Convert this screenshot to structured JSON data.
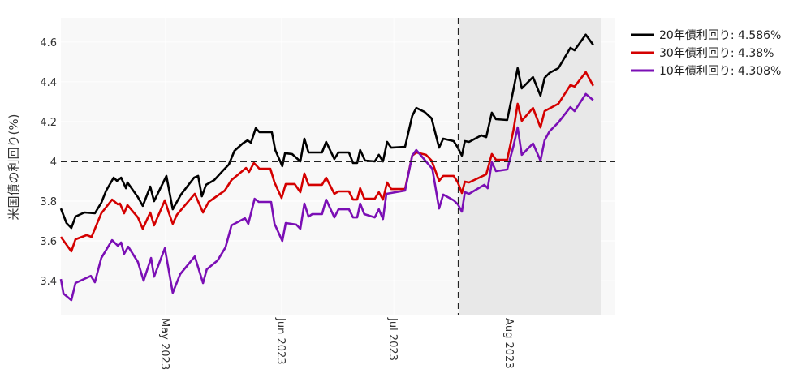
{
  "chart_data": {
    "type": "line",
    "title": "",
    "xlabel": "",
    "ylabel": "米国債の利回り(%)",
    "x_units": "days since 2023-04-01",
    "xlim": [
      2,
      150.2
    ],
    "ylim": [
      3.229,
      4.722
    ],
    "yticks": [
      3.4,
      3.6,
      3.8,
      4.0,
      4.2,
      4.4,
      4.6
    ],
    "ytick_labels": [
      "3.4",
      "3.6",
      "3.8",
      "4",
      "4.2",
      "4.4",
      "4.6"
    ],
    "xticks": [
      30,
      61,
      91,
      122
    ],
    "xtick_labels": [
      "May 2023",
      "Jun 2023",
      "Jul 2023",
      "Aug 2023"
    ],
    "reference_hline": 4.0,
    "reference_vline": 108.3,
    "shaded_region": [
      108.3,
      146.3
    ],
    "legend_position": "top-right-outside",
    "colors": {
      "plot_bg": "#f8f8f8",
      "shade": "#e8e8e8"
    },
    "series": [
      {
        "name": "20年債利回り: 4.586%",
        "color": "#000000",
        "x": [
          2.0,
          3.5,
          4.8,
          5.9,
          8.3,
          11.1,
          12.8,
          14.1,
          16.1,
          17.0,
          18.1,
          19.4,
          19.8,
          22.6,
          23.9,
          25.9,
          26.9,
          30.2,
          31.9,
          34.1,
          37.6,
          38.7,
          39.7,
          40.8,
          43.0,
          45.4,
          46.9,
          48.4,
          50.6,
          51.9,
          52.8,
          54.1,
          55.1,
          58.4,
          59.3,
          61.2,
          61.9,
          63.8,
          66.0,
          67.1,
          68.2,
          71.8,
          72.9,
          75.1,
          76.2,
          79.0,
          80.1,
          81.2,
          82.0,
          83.3,
          85.9,
          87.0,
          88.1,
          89.2,
          90.3,
          94.0,
          95.9,
          97.0,
          99.2,
          101.1,
          103.1,
          104.2,
          107.0,
          108.1,
          109.2,
          110.0,
          111.1,
          114.4,
          115.7,
          117.2,
          118.3,
          121.3,
          123.0,
          124.1,
          125.2,
          128.2,
          130.2,
          131.3,
          132.6,
          135.0,
          138.2,
          139.3,
          142.3,
          144.3
        ],
        "y": [
          3.763,
          3.69,
          3.665,
          3.722,
          3.743,
          3.739,
          3.792,
          3.853,
          3.918,
          3.902,
          3.918,
          3.865,
          3.894,
          3.82,
          3.776,
          3.873,
          3.8,
          3.927,
          3.759,
          3.833,
          3.918,
          3.927,
          3.824,
          3.882,
          3.906,
          3.955,
          3.984,
          4.053,
          4.09,
          4.106,
          4.094,
          4.167,
          4.147,
          4.147,
          4.057,
          3.976,
          4.041,
          4.037,
          4.0,
          4.114,
          4.045,
          4.045,
          4.098,
          4.012,
          4.045,
          4.045,
          3.992,
          3.992,
          4.057,
          4.004,
          4.0,
          4.033,
          4.0,
          4.098,
          4.069,
          4.073,
          4.229,
          4.269,
          4.249,
          4.216,
          4.069,
          4.114,
          4.102,
          4.069,
          4.029,
          4.102,
          4.098,
          4.131,
          4.122,
          4.245,
          4.212,
          4.208,
          4.363,
          4.469,
          4.367,
          4.424,
          4.331,
          4.42,
          4.445,
          4.469,
          4.571,
          4.559,
          4.637,
          4.586
        ]
      },
      {
        "name": "30年債利回り: 4.38%",
        "color": "#d40000",
        "x": [
          2.0,
          4.8,
          5.9,
          8.9,
          10.2,
          12.8,
          15.7,
          17.2,
          17.8,
          18.9,
          19.8,
          22.6,
          23.9,
          25.9,
          26.9,
          29.8,
          30.9,
          31.9,
          33.0,
          37.8,
          40.0,
          41.5,
          45.8,
          47.6,
          51.5,
          52.3,
          53.6,
          55.1,
          58.0,
          59.1,
          61.0,
          62.1,
          64.5,
          66.0,
          67.1,
          68.2,
          71.8,
          72.9,
          75.1,
          76.2,
          79.0,
          80.1,
          81.2,
          82.0,
          83.1,
          85.9,
          87.0,
          88.1,
          89.2,
          90.3,
          94.0,
          95.9,
          97.0,
          99.6,
          101.1,
          103.1,
          104.2,
          107.0,
          108.1,
          109.2,
          110.0,
          111.1,
          115.7,
          117.2,
          118.3,
          121.3,
          123.0,
          124.1,
          125.2,
          128.2,
          130.2,
          131.3,
          135.0,
          138.2,
          139.3,
          142.3,
          144.3
        ],
        "y": [
          3.62,
          3.547,
          3.608,
          3.629,
          3.62,
          3.739,
          3.808,
          3.784,
          3.788,
          3.739,
          3.78,
          3.718,
          3.661,
          3.743,
          3.678,
          3.804,
          3.739,
          3.686,
          3.731,
          3.837,
          3.743,
          3.796,
          3.853,
          3.906,
          3.967,
          3.947,
          3.992,
          3.963,
          3.963,
          3.894,
          3.816,
          3.886,
          3.886,
          3.845,
          3.939,
          3.882,
          3.882,
          3.918,
          3.837,
          3.849,
          3.849,
          3.808,
          3.808,
          3.865,
          3.812,
          3.812,
          3.845,
          3.808,
          3.894,
          3.861,
          3.861,
          4.029,
          4.045,
          4.033,
          4.004,
          3.902,
          3.927,
          3.927,
          3.894,
          3.841,
          3.898,
          3.894,
          3.935,
          4.037,
          4.008,
          4.008,
          4.159,
          4.29,
          4.204,
          4.269,
          4.171,
          4.253,
          4.29,
          4.384,
          4.376,
          4.449,
          4.38
        ]
      },
      {
        "name": "10年債利回り: 4.308%",
        "color": "#7b0fb5",
        "x": [
          2.0,
          2.7,
          4.8,
          5.9,
          10.0,
          11.1,
          12.8,
          15.7,
          17.2,
          18.1,
          18.9,
          20.0,
          22.6,
          24.1,
          26.1,
          26.9,
          29.8,
          31.9,
          33.9,
          37.8,
          40.0,
          41.0,
          43.9,
          46.0,
          47.6,
          51.2,
          52.1,
          53.8,
          54.9,
          58.2,
          59.1,
          61.2,
          62.1,
          64.9,
          66.0,
          67.1,
          68.2,
          69.2,
          71.8,
          72.9,
          75.1,
          76.2,
          79.0,
          80.1,
          81.2,
          82.0,
          83.1,
          85.9,
          87.0,
          88.1,
          89.0,
          94.0,
          95.9,
          97.0,
          101.3,
          103.1,
          104.2,
          107.0,
          108.1,
          109.2,
          110.0,
          111.1,
          115.2,
          116.1,
          117.2,
          118.3,
          121.3,
          123.0,
          124.1,
          125.2,
          128.2,
          130.2,
          131.3,
          132.6,
          135.0,
          138.2,
          139.3,
          142.3,
          144.3
        ],
        "y": [
          3.408,
          3.335,
          3.302,
          3.388,
          3.424,
          3.392,
          3.514,
          3.604,
          3.576,
          3.592,
          3.535,
          3.571,
          3.494,
          3.4,
          3.514,
          3.42,
          3.563,
          3.339,
          3.433,
          3.522,
          3.388,
          3.457,
          3.502,
          3.567,
          3.678,
          3.714,
          3.686,
          3.812,
          3.796,
          3.796,
          3.686,
          3.6,
          3.69,
          3.682,
          3.661,
          3.788,
          3.722,
          3.735,
          3.735,
          3.808,
          3.718,
          3.759,
          3.759,
          3.718,
          3.718,
          3.788,
          3.735,
          3.718,
          3.759,
          3.71,
          3.837,
          3.853,
          4.029,
          4.057,
          3.963,
          3.763,
          3.833,
          3.804,
          3.784,
          3.747,
          3.845,
          3.837,
          3.882,
          3.865,
          3.996,
          3.951,
          3.959,
          4.078,
          4.171,
          4.033,
          4.09,
          4.004,
          4.106,
          4.151,
          4.196,
          4.273,
          4.253,
          4.339,
          4.308
        ]
      }
    ]
  }
}
